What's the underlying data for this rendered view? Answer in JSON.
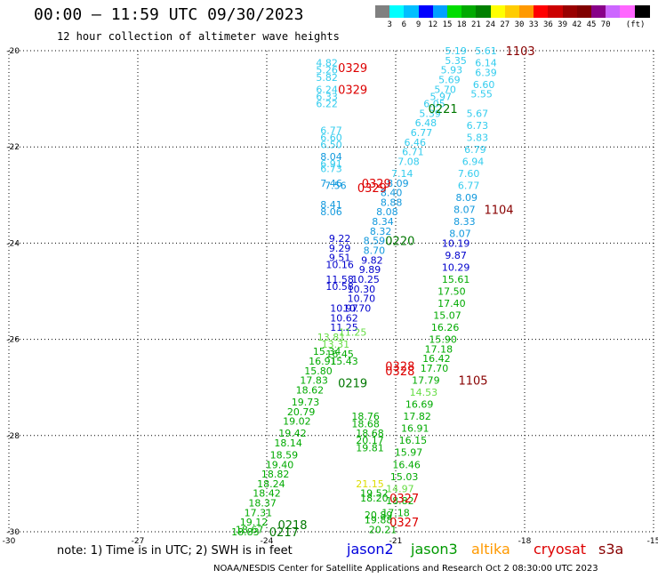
{
  "header": {
    "title": "00:00 – 11:59 UTC 09/30/2023",
    "subtitle": "12 hour collection of altimeter wave heights"
  },
  "colorbar": {
    "unit": "(ft)",
    "colors": [
      "#808080",
      "#00ffff",
      "#00bfff",
      "#0000ff",
      "#00a0ff",
      "#00dd00",
      "#00aa00",
      "#008000",
      "#ffff00",
      "#ffcc00",
      "#ff9900",
      "#ff0000",
      "#cc0000",
      "#990000",
      "#800000",
      "#880088",
      "#cc66ff",
      "#ff66ff",
      "#000000"
    ],
    "labels": [
      "3",
      "6",
      "9",
      "12",
      "15",
      "18",
      "21",
      "24",
      "27",
      "30",
      "33",
      "36",
      "39",
      "42",
      "45",
      "70"
    ]
  },
  "axes": {
    "x_ticks": [
      "-30",
      "-27",
      "-24",
      "-21",
      "-18",
      "-15"
    ],
    "y_ticks": [
      "-20",
      "-22",
      "-24",
      "-26",
      "-28",
      "-30"
    ]
  },
  "chart_data": {
    "type": "scatter",
    "xlim": [
      -30,
      -15
    ],
    "ylim": [
      -30,
      -20
    ],
    "grid": true,
    "labels": [
      {
        "t": "5.19",
        "x": -19.6,
        "y": -20.0,
        "c": "#33ccee"
      },
      {
        "t": "5.61",
        "x": -18.9,
        "y": -20.0,
        "c": "#33ccee"
      },
      {
        "t": "5.35",
        "x": -19.6,
        "y": -20.2,
        "c": "#33ccee"
      },
      {
        "t": "6.14",
        "x": -18.9,
        "y": -20.25,
        "c": "#33ccee"
      },
      {
        "t": "5.93",
        "x": -19.7,
        "y": -20.4,
        "c": "#33ccee"
      },
      {
        "t": "6.39",
        "x": -18.9,
        "y": -20.45,
        "c": "#33ccee"
      },
      {
        "t": "5.69",
        "x": -19.75,
        "y": -20.6,
        "c": "#33ccee"
      },
      {
        "t": "6.60",
        "x": -18.95,
        "y": -20.7,
        "c": "#33ccee"
      },
      {
        "t": "5.70",
        "x": -19.85,
        "y": -20.8,
        "c": "#33ccee"
      },
      {
        "t": "5.55",
        "x": -19.0,
        "y": -20.9,
        "c": "#33ccee"
      },
      {
        "t": "5.97",
        "x": -19.95,
        "y": -20.95,
        "c": "#33ccee"
      },
      {
        "t": "6.05",
        "x": -20.1,
        "y": -21.1,
        "c": "#33ccee"
      },
      {
        "t": "5.67",
        "x": -19.1,
        "y": -21.3,
        "c": "#33ccee"
      },
      {
        "t": "5.39",
        "x": -20.2,
        "y": -21.3,
        "c": "#33ccee"
      },
      {
        "t": "6.48",
        "x": -20.3,
        "y": -21.5,
        "c": "#33ccee"
      },
      {
        "t": "6.73",
        "x": -19.1,
        "y": -21.55,
        "c": "#33ccee"
      },
      {
        "t": "6.77",
        "x": -20.4,
        "y": -21.7,
        "c": "#33ccee"
      },
      {
        "t": "5.83",
        "x": -19.1,
        "y": -21.8,
        "c": "#33ccee"
      },
      {
        "t": "6.46",
        "x": -20.55,
        "y": -21.9,
        "c": "#33ccee"
      },
      {
        "t": "6.79",
        "x": -19.15,
        "y": -22.05,
        "c": "#33ccee"
      },
      {
        "t": "6.71",
        "x": -20.6,
        "y": -22.1,
        "c": "#33ccee"
      },
      {
        "t": "7.08",
        "x": -20.7,
        "y": -22.3,
        "c": "#33ccee"
      },
      {
        "t": "6.94",
        "x": -19.2,
        "y": -22.3,
        "c": "#33ccee"
      },
      {
        "t": "7.14",
        "x": -20.85,
        "y": -22.55,
        "c": "#33ccee"
      },
      {
        "t": "7.60",
        "x": -19.3,
        "y": -22.55,
        "c": "#33ccee"
      },
      {
        "t": "8.09",
        "x": -20.95,
        "y": -22.75,
        "c": "#1199dd"
      },
      {
        "t": "6.77",
        "x": -19.3,
        "y": -22.8,
        "c": "#33ccee"
      },
      {
        "t": "8.40",
        "x": -21.1,
        "y": -22.95,
        "c": "#1199dd"
      },
      {
        "t": "8.09",
        "x": -19.35,
        "y": -23.05,
        "c": "#1199dd"
      },
      {
        "t": "8.88",
        "x": -21.1,
        "y": -23.15,
        "c": "#1199dd"
      },
      {
        "t": "8.07",
        "x": -19.4,
        "y": -23.3,
        "c": "#1199dd"
      },
      {
        "t": "8.08",
        "x": -21.2,
        "y": -23.35,
        "c": "#1199dd"
      },
      {
        "t": "8.34",
        "x": -21.3,
        "y": -23.55,
        "c": "#1199dd"
      },
      {
        "t": "8.33",
        "x": -19.4,
        "y": -23.55,
        "c": "#1199dd"
      },
      {
        "t": "8.32",
        "x": -21.35,
        "y": -23.75,
        "c": "#1199dd"
      },
      {
        "t": "8.07",
        "x": -19.5,
        "y": -23.8,
        "c": "#1199dd"
      },
      {
        "t": "8.59",
        "x": -21.5,
        "y": -23.95,
        "c": "#1199dd"
      },
      {
        "t": "10.19",
        "x": -19.6,
        "y": -24.0,
        "c": "#0000cc"
      },
      {
        "t": "8.70",
        "x": -21.5,
        "y": -24.15,
        "c": "#1199dd"
      },
      {
        "t": "9.87",
        "x": -19.6,
        "y": -24.25,
        "c": "#0000cc"
      },
      {
        "t": "9.82",
        "x": -21.55,
        "y": -24.35,
        "c": "#0000cc"
      },
      {
        "t": "10.29",
        "x": -19.6,
        "y": -24.5,
        "c": "#0000cc"
      },
      {
        "t": "9.89",
        "x": -21.6,
        "y": -24.55,
        "c": "#0000cc"
      },
      {
        "t": "10.25",
        "x": -21.7,
        "y": -24.75,
        "c": "#0000cc"
      },
      {
        "t": "15.61",
        "x": -19.6,
        "y": -24.75,
        "c": "#00aa00"
      },
      {
        "t": "10.30",
        "x": -21.8,
        "y": -24.95,
        "c": "#0000cc"
      },
      {
        "t": "17.50",
        "x": -19.7,
        "y": -25.0,
        "c": "#00aa00"
      },
      {
        "t": "10.70",
        "x": -21.8,
        "y": -25.15,
        "c": "#0000cc"
      },
      {
        "t": "17.40",
        "x": -19.7,
        "y": -25.25,
        "c": "#00aa00"
      },
      {
        "t": "10.70",
        "x": -21.9,
        "y": -25.35,
        "c": "#0000cc"
      },
      {
        "t": "15.07",
        "x": -19.8,
        "y": -25.5,
        "c": "#00aa00"
      },
      {
        "t": "16.26",
        "x": -19.85,
        "y": -25.75,
        "c": "#00aa00"
      },
      {
        "t": "15.90",
        "x": -19.9,
        "y": -26.0,
        "c": "#00aa00"
      },
      {
        "t": "17.18",
        "x": -20.0,
        "y": -26.2,
        "c": "#00aa00"
      },
      {
        "t": "16.42",
        "x": -20.05,
        "y": -26.4,
        "c": "#00aa00"
      },
      {
        "t": "17.70",
        "x": -20.1,
        "y": -26.6,
        "c": "#00aa00"
      },
      {
        "t": "17.79",
        "x": -20.3,
        "y": -26.85,
        "c": "#00aa00"
      },
      {
        "t": "14.53",
        "x": -20.35,
        "y": -27.1,
        "c": "#66dd44"
      },
      {
        "t": "16.69",
        "x": -20.45,
        "y": -27.35,
        "c": "#00aa00"
      },
      {
        "t": "17.82",
        "x": -20.5,
        "y": -27.6,
        "c": "#00aa00"
      },
      {
        "t": "16.91",
        "x": -20.55,
        "y": -27.85,
        "c": "#00aa00"
      },
      {
        "t": "16.15",
        "x": -20.6,
        "y": -28.1,
        "c": "#00aa00"
      },
      {
        "t": "15.97",
        "x": -20.7,
        "y": -28.35,
        "c": "#00aa00"
      },
      {
        "t": "16.46",
        "x": -20.75,
        "y": -28.6,
        "c": "#00aa00"
      },
      {
        "t": "15.03",
        "x": -20.8,
        "y": -28.85,
        "c": "#00aa00"
      },
      {
        "t": "14.97",
        "x": -20.9,
        "y": -29.1,
        "c": "#66dd44"
      },
      {
        "t": "18.82",
        "x": -20.9,
        "y": -29.35,
        "c": "#00aa00"
      },
      {
        "t": "17.18",
        "x": -21.0,
        "y": -29.6,
        "c": "#00aa00"
      },
      {
        "t": "4.82",
        "x": -22.6,
        "y": -20.25,
        "c": "#33ccee"
      },
      {
        "t": "5.26",
        "x": -22.6,
        "y": -20.4,
        "c": "#33ccee"
      },
      {
        "t": "5.82",
        "x": -22.6,
        "y": -20.55,
        "c": "#33ccee"
      },
      {
        "t": "6.24",
        "x": -22.6,
        "y": -20.8,
        "c": "#33ccee"
      },
      {
        "t": "6.33",
        "x": -22.6,
        "y": -20.95,
        "c": "#33ccee"
      },
      {
        "t": "6.22",
        "x": -22.6,
        "y": -21.1,
        "c": "#33ccee"
      },
      {
        "t": "6.77",
        "x": -22.5,
        "y": -21.65,
        "c": "#33ccee"
      },
      {
        "t": "6.60",
        "x": -22.5,
        "y": -21.8,
        "c": "#33ccee"
      },
      {
        "t": "6.50",
        "x": -22.5,
        "y": -21.95,
        "c": "#33ccee"
      },
      {
        "t": "8.04",
        "x": -22.5,
        "y": -22.2,
        "c": "#1199dd"
      },
      {
        "t": "6.91",
        "x": -22.5,
        "y": -22.35,
        "c": "#33ccee"
      },
      {
        "t": "6.73",
        "x": -22.5,
        "y": -22.45,
        "c": "#33ccee"
      },
      {
        "t": "7.46",
        "x": -22.5,
        "y": -22.75,
        "c": "#1199dd"
      },
      {
        "t": "7.56",
        "x": -22.4,
        "y": -22.8,
        "c": "#1199dd"
      },
      {
        "t": "8.41",
        "x": -22.5,
        "y": -23.2,
        "c": "#1199dd"
      },
      {
        "t": "8.06",
        "x": -22.5,
        "y": -23.35,
        "c": "#1199dd"
      },
      {
        "t": "9.22",
        "x": -22.3,
        "y": -23.9,
        "c": "#0000cc"
      },
      {
        "t": "9.29",
        "x": -22.3,
        "y": -24.1,
        "c": "#0000cc"
      },
      {
        "t": "9.51",
        "x": -22.3,
        "y": -24.3,
        "c": "#0000cc"
      },
      {
        "t": "10.16",
        "x": -22.3,
        "y": -24.45,
        "c": "#0000cc"
      },
      {
        "t": "11.58",
        "x": -22.3,
        "y": -24.75,
        "c": "#0000cc"
      },
      {
        "t": "10.58",
        "x": -22.3,
        "y": -24.9,
        "c": "#0000cc"
      },
      {
        "t": "10.97",
        "x": -22.2,
        "y": -25.35,
        "c": "#0000cc"
      },
      {
        "t": "10.62",
        "x": -22.2,
        "y": -25.55,
        "c": "#0000cc"
      },
      {
        "t": "11.25",
        "x": -22.2,
        "y": -25.75,
        "c": "#0000cc"
      },
      {
        "t": "11.25",
        "x": -22.0,
        "y": -25.85,
        "c": "#66dd44"
      },
      {
        "t": "13.81",
        "x": -22.5,
        "y": -25.95,
        "c": "#66dd44"
      },
      {
        "t": "13.31",
        "x": -22.4,
        "y": -26.1,
        "c": "#66dd44"
      },
      {
        "t": "15.34",
        "x": -22.6,
        "y": -26.25,
        "c": "#00aa00"
      },
      {
        "t": "16.45",
        "x": -22.3,
        "y": -26.3,
        "c": "#00aa00"
      },
      {
        "t": "16.91",
        "x": -22.7,
        "y": -26.45,
        "c": "#00aa00"
      },
      {
        "t": "15.43",
        "x": -22.2,
        "y": -26.45,
        "c": "#00aa00"
      },
      {
        "t": "15.80",
        "x": -22.8,
        "y": -26.65,
        "c": "#00aa00"
      },
      {
        "t": "17.83",
        "x": -22.9,
        "y": -26.85,
        "c": "#00aa00"
      },
      {
        "t": "18.62",
        "x": -23.0,
        "y": -27.05,
        "c": "#00aa00"
      },
      {
        "t": "19.73",
        "x": -23.1,
        "y": -27.3,
        "c": "#00aa00"
      },
      {
        "t": "20.79",
        "x": -23.2,
        "y": -27.5,
        "c": "#00aa00"
      },
      {
        "t": "19.02",
        "x": -23.3,
        "y": -27.7,
        "c": "#00aa00"
      },
      {
        "t": "19.42",
        "x": -23.4,
        "y": -27.95,
        "c": "#00aa00"
      },
      {
        "t": "18.14",
        "x": -23.5,
        "y": -28.15,
        "c": "#00aa00"
      },
      {
        "t": "18.59",
        "x": -23.6,
        "y": -28.4,
        "c": "#00aa00"
      },
      {
        "t": "19.40",
        "x": -23.7,
        "y": -28.6,
        "c": "#00aa00"
      },
      {
        "t": "18.82",
        "x": -23.8,
        "y": -28.8,
        "c": "#00aa00"
      },
      {
        "t": "18.24",
        "x": -23.9,
        "y": -29.0,
        "c": "#00aa00"
      },
      {
        "t": "18.42",
        "x": -24.0,
        "y": -29.2,
        "c": "#00aa00"
      },
      {
        "t": "18.37",
        "x": -24.1,
        "y": -29.4,
        "c": "#00aa00"
      },
      {
        "t": "17.31",
        "x": -24.2,
        "y": -29.6,
        "c": "#00aa00"
      },
      {
        "t": "19.12",
        "x": -24.3,
        "y": -29.8,
        "c": "#00aa00"
      },
      {
        "t": "18.67",
        "x": -24.4,
        "y": -29.95,
        "c": "#00aa00"
      },
      {
        "t": "18.83",
        "x": -24.5,
        "y": -30.0,
        "c": "#00aa00"
      },
      {
        "t": "18.76",
        "x": -21.7,
        "y": -27.6,
        "c": "#00aa00"
      },
      {
        "t": "18.68",
        "x": -21.7,
        "y": -27.75,
        "c": "#00aa00"
      },
      {
        "t": "18.68",
        "x": -21.6,
        "y": -27.95,
        "c": "#00aa00"
      },
      {
        "t": "20.17",
        "x": -21.6,
        "y": -28.1,
        "c": "#00aa00"
      },
      {
        "t": "19.81",
        "x": -21.6,
        "y": -28.25,
        "c": "#00aa00"
      },
      {
        "t": "21.15",
        "x": -21.6,
        "y": -29.0,
        "c": "#dddd00"
      },
      {
        "t": "19.52",
        "x": -21.5,
        "y": -29.2,
        "c": "#00aa00"
      },
      {
        "t": "18.20",
        "x": -21.5,
        "y": -29.3,
        "c": "#00aa00"
      },
      {
        "t": "20.89",
        "x": -21.4,
        "y": -29.65,
        "c": "#00aa00"
      },
      {
        "t": "19.88",
        "x": -21.4,
        "y": -29.75,
        "c": "#00aa00"
      },
      {
        "t": "20.21",
        "x": -21.3,
        "y": -29.95,
        "c": "#00aa00"
      }
    ],
    "passes": [
      {
        "t": "1103",
        "x": -18.1,
        "y": -20.0,
        "c": "#880000"
      },
      {
        "t": "0329",
        "x": -22.0,
        "y": -20.35,
        "c": "#dd0000"
      },
      {
        "t": "0329",
        "x": -22.0,
        "y": -20.8,
        "c": "#dd0000"
      },
      {
        "t": "0221",
        "x": -19.9,
        "y": -21.2,
        "c": "#007700"
      },
      {
        "t": "0329",
        "x": -21.45,
        "y": -22.75,
        "c": "#dd0000"
      },
      {
        "t": "0329",
        "x": -21.55,
        "y": -22.85,
        "c": "#dd0000"
      },
      {
        "t": "1104",
        "x": -18.6,
        "y": -23.3,
        "c": "#880000"
      },
      {
        "t": "0220",
        "x": -20.9,
        "y": -23.95,
        "c": "#007700"
      },
      {
        "t": "0328",
        "x": -20.9,
        "y": -26.55,
        "c": "#dd0000"
      },
      {
        "t": "0328",
        "x": -20.9,
        "y": -26.65,
        "c": "#dd0000"
      },
      {
        "t": "1105",
        "x": -19.2,
        "y": -26.85,
        "c": "#880000"
      },
      {
        "t": "0219",
        "x": -22.0,
        "y": -26.9,
        "c": "#007700"
      },
      {
        "t": "0327",
        "x": -20.8,
        "y": -29.3,
        "c": "#dd0000"
      },
      {
        "t": "0327",
        "x": -20.8,
        "y": -29.8,
        "c": "#dd0000"
      },
      {
        "t": "0218",
        "x": -23.4,
        "y": -29.85,
        "c": "#007700"
      },
      {
        "t": "0217",
        "x": -23.6,
        "y": -30.0,
        "c": "#007700"
      }
    ]
  },
  "note": "note: 1) Time is in UTC; 2) SWH is in feet",
  "satellites": [
    {
      "name": "jason2",
      "color": "#0000dd"
    },
    {
      "name": "jason3",
      "color": "#009900"
    },
    {
      "name": "altika",
      "color": "#ff9900"
    },
    {
      "name": "cryosat",
      "color": "#dd0000"
    },
    {
      "name": "s3a",
      "color": "#880000"
    }
  ],
  "footer": "NOAA/NESDIS Center for Satellite Applications and Research   Oct  2 08:30:00 UTC 2023"
}
